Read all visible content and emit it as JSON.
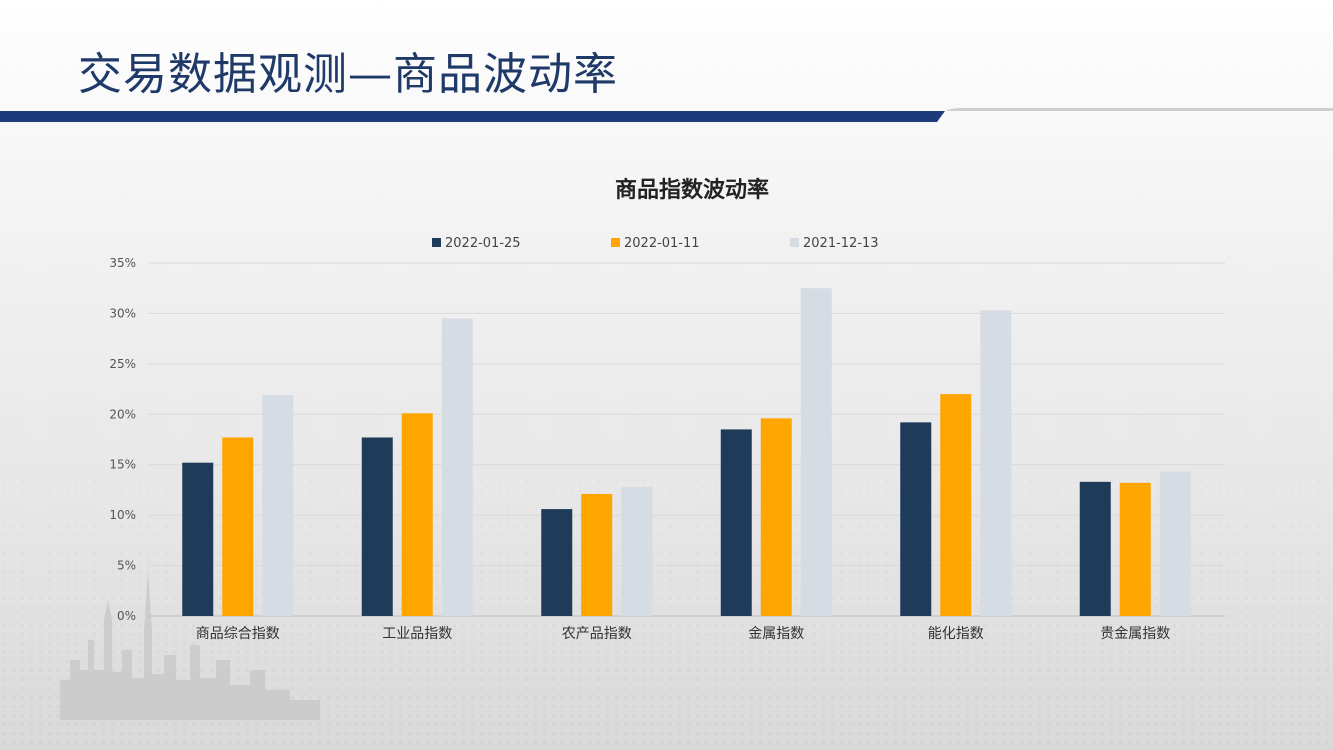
{
  "slide": {
    "title": "交易数据观测—商品波动率"
  },
  "colors": {
    "title_text": "#1f3a68",
    "title_bar": "#1d3b7a",
    "series_1": "#1f3b5a",
    "series_2": "#ffa500",
    "series_3": "#d6dce4"
  },
  "chart_data": {
    "type": "bar",
    "title": "商品指数波动率",
    "xlabel": "",
    "ylabel": "",
    "categories": [
      "商品综合指数",
      "工业品指数",
      "农产品指数",
      "金属指数",
      "能化指数",
      "贵金属指数"
    ],
    "series": [
      {
        "name": "2022-01-25",
        "color": "#1f3b5a",
        "values": [
          15.2,
          17.7,
          10.6,
          18.5,
          19.2,
          13.3
        ]
      },
      {
        "name": "2022-01-11",
        "color": "#ffa500",
        "values": [
          17.7,
          20.1,
          12.1,
          19.6,
          22.0,
          13.2
        ]
      },
      {
        "name": "2021-12-13",
        "color": "#d6dce4",
        "values": [
          21.9,
          29.5,
          12.8,
          32.5,
          30.3,
          14.3
        ]
      }
    ],
    "ylim": [
      0,
      35
    ],
    "yticks": [
      0,
      5,
      10,
      15,
      20,
      25,
      30,
      35
    ],
    "ytick_labels": [
      "0%",
      "5%",
      "10%",
      "15%",
      "20%",
      "25%",
      "30%",
      "35%"
    ],
    "grid": true,
    "legend_position": "top"
  }
}
